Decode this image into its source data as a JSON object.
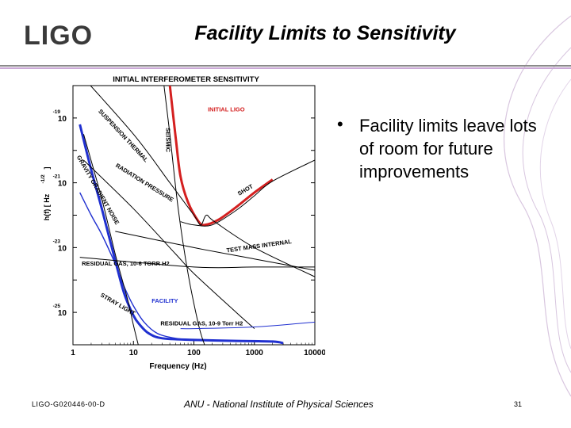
{
  "header": {
    "logo_text": "LIGO",
    "title": "Facility Limits to Sensitivity"
  },
  "bullet": {
    "text": "Facility limits leave lots of room for future improvements"
  },
  "footer": {
    "doc_id": "LIGO-G020446-00-D",
    "org": "ANU - National Institute of Physical Sciences",
    "page": "31"
  },
  "colors": {
    "red": "#d42020",
    "blue": "#2030d0",
    "black": "#000000"
  },
  "chart_data": {
    "type": "line",
    "title": "INITIAL INTERFEROMETER SENSITIVITY",
    "xlabel": "Frequency (Hz)",
    "ylabel": "h(f) [ Hz",
    "ylabel_exp": "-1/2",
    "ylabel_close": "]",
    "xscale": "log",
    "yscale": "log",
    "xlim": [
      1,
      10000
    ],
    "ylim_exp": [
      -26,
      -18
    ],
    "x_ticks": [
      {
        "value": 1,
        "label": "1"
      },
      {
        "value": 10,
        "label": "10"
      },
      {
        "value": 100,
        "label": "100"
      },
      {
        "value": 1000,
        "label": "1000"
      },
      {
        "value": 10000,
        "label": "10000"
      }
    ],
    "y_ticks": [
      {
        "exp": -19,
        "base": "10",
        "sup": "-19"
      },
      {
        "exp": -21,
        "base": "10",
        "sup": "-21"
      },
      {
        "exp": -23,
        "base": "10",
        "sup": "-23"
      },
      {
        "exp": -25,
        "base": "10",
        "sup": "-25"
      }
    ],
    "series": [
      {
        "name": "INITIAL LIGO",
        "color": "red",
        "width": 3,
        "points": [
          [
            40,
            -18
          ],
          [
            50,
            -19.6
          ],
          [
            60,
            -20.8
          ],
          [
            80,
            -21.6
          ],
          [
            120,
            -22.2
          ],
          [
            150,
            -22.3
          ],
          [
            250,
            -22.15
          ],
          [
            500,
            -21.75
          ],
          [
            1000,
            -21.3
          ],
          [
            2000,
            -20.9
          ]
        ]
      },
      {
        "name": "FACILITY",
        "color": "blue",
        "width": 3,
        "points": [
          [
            1.3,
            -19.2
          ],
          [
            2,
            -20.6
          ],
          [
            3,
            -21.8
          ],
          [
            5,
            -23.4
          ],
          [
            7,
            -24.4
          ],
          [
            10,
            -25.1
          ],
          [
            13,
            -25.4
          ],
          [
            18,
            -25.65
          ],
          [
            30,
            -25.8
          ],
          [
            100,
            -25.85
          ],
          [
            500,
            -25.88
          ],
          [
            2000,
            -25.9
          ],
          [
            3000,
            -25.95
          ]
        ]
      },
      {
        "name": "FACILITY-THIN",
        "color": "blue",
        "width": 1.4,
        "points": [
          [
            1.3,
            -21.3
          ],
          [
            2,
            -22
          ],
          [
            3,
            -22.6
          ],
          [
            5,
            -23.5
          ],
          [
            7,
            -24.2
          ],
          [
            10,
            -24.8
          ],
          [
            15,
            -25.3
          ],
          [
            25,
            -25.65
          ],
          [
            50,
            -25.8
          ],
          [
            100,
            -25.85
          ]
        ]
      },
      {
        "name": "SUSPENSION THERMAL",
        "color": "black",
        "width": 1,
        "points": [
          [
            1,
            -17.4
          ],
          [
            10,
            -19.5
          ],
          [
            40,
            -21
          ],
          [
            100,
            -22
          ],
          [
            130,
            -22.3
          ],
          [
            160,
            -22
          ],
          [
            220,
            -22.2
          ],
          [
            1000,
            -23
          ],
          [
            10000,
            -23.9
          ]
        ]
      },
      {
        "name": "GRAVITY GRADIENT NOISE",
        "color": "black",
        "width": 1,
        "points": [
          [
            1.5,
            -19.5
          ],
          [
            3,
            -21.5
          ],
          [
            5,
            -23.2
          ],
          [
            8,
            -24.6
          ],
          [
            10,
            -25.4
          ],
          [
            12,
            -26
          ]
        ]
      },
      {
        "name": "RADIATION PRESSURE",
        "color": "black",
        "width": 1,
        "points": [
          [
            1.5,
            -20.3
          ],
          [
            10,
            -21.8
          ],
          [
            50,
            -23.2
          ],
          [
            100,
            -23.8
          ],
          [
            500,
            -25
          ],
          [
            1000,
            -25.5
          ]
        ]
      },
      {
        "name": "SHOT",
        "color": "black",
        "width": 1,
        "points": [
          [
            60,
            -22.2
          ],
          [
            100,
            -22.3
          ],
          [
            200,
            -22.3
          ],
          [
            500,
            -21.85
          ],
          [
            1000,
            -21.4
          ],
          [
            2000,
            -20.95
          ],
          [
            10000,
            -20.3
          ]
        ]
      },
      {
        "name": "SEISMIC",
        "color": "black",
        "width": 1,
        "points": [
          [
            32,
            -18
          ],
          [
            40,
            -19.5
          ],
          [
            55,
            -21.8
          ],
          [
            80,
            -23.8
          ],
          [
            120,
            -25.4
          ],
          [
            150,
            -26
          ]
        ]
      },
      {
        "name": "TEST MASS INTERNAL",
        "color": "black",
        "width": 1,
        "points": [
          [
            5,
            -22.5
          ],
          [
            100,
            -23
          ],
          [
            1000,
            -23.35
          ],
          [
            10000,
            -23.7
          ]
        ]
      },
      {
        "name": "RESIDUAL GAS 1e-6",
        "color": "black",
        "width": 1,
        "points": [
          [
            1.3,
            -23.3
          ],
          [
            100,
            -23.6
          ],
          [
            1000,
            -23.6
          ],
          [
            10000,
            -23.6
          ]
        ]
      },
      {
        "name": "RESIDUAL GAS 1e-9",
        "color": "blue",
        "width": 1,
        "points": [
          [
            60,
            -25.5
          ],
          [
            100,
            -25.5
          ],
          [
            1000,
            -25.45
          ],
          [
            10000,
            -25.3
          ]
        ]
      }
    ],
    "annotations": [
      {
        "text": "INITIAL LIGO",
        "color": "red",
        "x": 170,
        "y": -18.8,
        "rotate": 0
      },
      {
        "text": "SUSPENSION THERMAL",
        "color": "black",
        "x": 2.6,
        "y": -18.8,
        "rotate": 47
      },
      {
        "text": "SEISMIC",
        "color": "black",
        "x": 35,
        "y": -19.3,
        "rotate": 90
      },
      {
        "text": "GRAVITY GRADIENT NOISE",
        "color": "black",
        "x": 1.15,
        "y": -20.2,
        "rotate": 60
      },
      {
        "text": "RADIATION PRESSURE",
        "color": "black",
        "x": 5,
        "y": -20.5,
        "rotate": 32
      },
      {
        "text": "SHOT",
        "color": "black",
        "x": 560,
        "y": -21.4,
        "rotate": -30
      },
      {
        "text": "TEST MASS INTERNAL",
        "color": "black",
        "x": 350,
        "y": -23.15,
        "rotate": -8
      },
      {
        "text": "RESIDUAL GAS, 10-6 TORR H2",
        "color": "black",
        "x": 1.4,
        "y": -23.55,
        "rotate": 0
      },
      {
        "text": "STRAY LIGHT",
        "color": "black",
        "x": 2.8,
        "y": -24.5,
        "rotate": 30
      },
      {
        "text": "FACILITY",
        "color": "blue",
        "x": 20,
        "y": -24.7,
        "rotate": 0
      },
      {
        "text": "RESIDUAL GAS, 10-9 Torr H2",
        "color": "black",
        "x": 28,
        "y": -25.4,
        "rotate": 0
      }
    ]
  }
}
